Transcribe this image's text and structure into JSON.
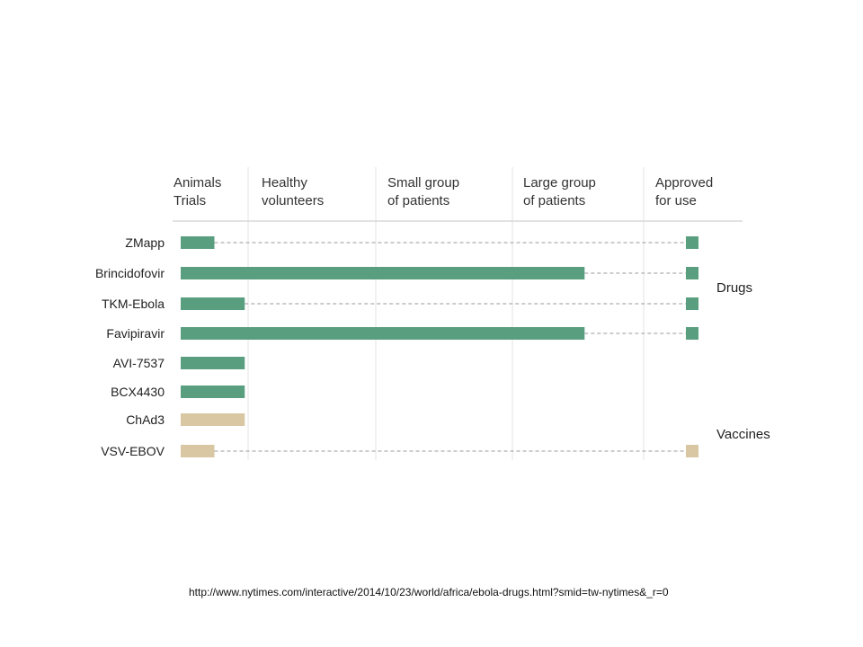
{
  "chart_data": {
    "type": "bar",
    "stages": [
      [
        "Animals",
        "Trials"
      ],
      [
        "Healthy",
        "volunteers"
      ],
      [
        "Small group",
        "of patients"
      ],
      [
        "Large group",
        "of patients"
      ],
      [
        "Approved",
        "for use"
      ]
    ],
    "x_range": [
      0,
      5
    ],
    "items": [
      {
        "name": "ZMapp",
        "group": "drug",
        "progress": 0.5,
        "marked_approved": true
      },
      {
        "name": "Brincidofovir",
        "group": "drug",
        "progress": 3.55,
        "marked_approved": true
      },
      {
        "name": "TKM-Ebola",
        "group": "drug",
        "progress": 0.95,
        "marked_approved": true
      },
      {
        "name": "Favipiravir",
        "group": "drug",
        "progress": 3.55,
        "marked_approved": true
      },
      {
        "name": "AVI-7537",
        "group": "drug",
        "progress": 0.95,
        "marked_approved": false
      },
      {
        "name": "BCX4430",
        "group": "drug",
        "progress": 0.95,
        "marked_approved": false
      },
      {
        "name": "ChAd3",
        "group": "vaccine",
        "progress": 0.95,
        "marked_approved": false
      },
      {
        "name": "VSV-EBOV",
        "group": "vaccine",
        "progress": 0.5,
        "marked_approved": true
      }
    ],
    "groups": [
      {
        "key": "drug",
        "label": "Drugs",
        "color": "#5a9e80"
      },
      {
        "key": "vaccine",
        "label": "Vaccines",
        "color": "#d8c7a2"
      }
    ],
    "grid": true
  },
  "source": "http://www.nytimes.com/interactive/2014/10/23/world/africa/ebola-drugs.html?smid=tw-nytimes&_r=0"
}
